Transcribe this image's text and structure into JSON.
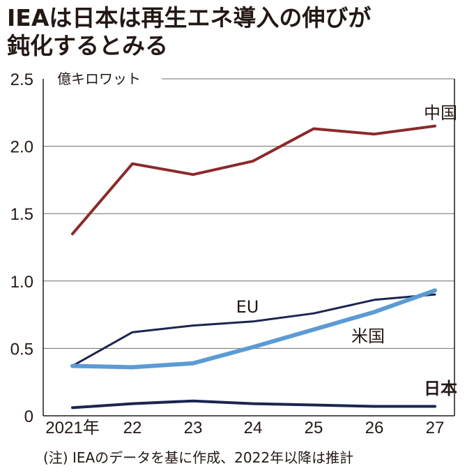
{
  "title_line1": "IEAは日本は再生エネ導入の伸びが",
  "title_line2": "鈍化するとみる",
  "note": "(注) IEAのデータを基に作成、2022年以降は推計",
  "chart_data": {
    "type": "line",
    "title": "IEAは日本は再生エネ導入の伸びが鈍化するとみる",
    "unit_label": "億キロワット",
    "x": [
      "2021年",
      "22",
      "23",
      "24",
      "25",
      "26",
      "27"
    ],
    "y_ticks": [
      "0",
      "0.5",
      "1.0",
      "1.5",
      "2.0",
      "2.5"
    ],
    "ylim": [
      0,
      2.5
    ],
    "grid": true,
    "series": [
      {
        "name": "中国",
        "color": "#8b2a2a",
        "width": 4,
        "values": [
          1.35,
          1.87,
          1.79,
          1.89,
          2.13,
          2.09,
          2.15
        ]
      },
      {
        "name": "EU",
        "color": "#1c2550",
        "width": 3,
        "values": [
          0.37,
          0.62,
          0.67,
          0.7,
          0.76,
          0.86,
          0.9
        ]
      },
      {
        "name": "米国",
        "color": "#5b9bd5",
        "width": 6,
        "values": [
          0.37,
          0.36,
          0.39,
          0.51,
          0.64,
          0.77,
          0.93
        ]
      },
      {
        "name": "日本",
        "color": "#1c2550",
        "width": 4,
        "values": [
          0.06,
          0.09,
          0.11,
          0.09,
          0.08,
          0.07,
          0.07
        ]
      }
    ]
  }
}
